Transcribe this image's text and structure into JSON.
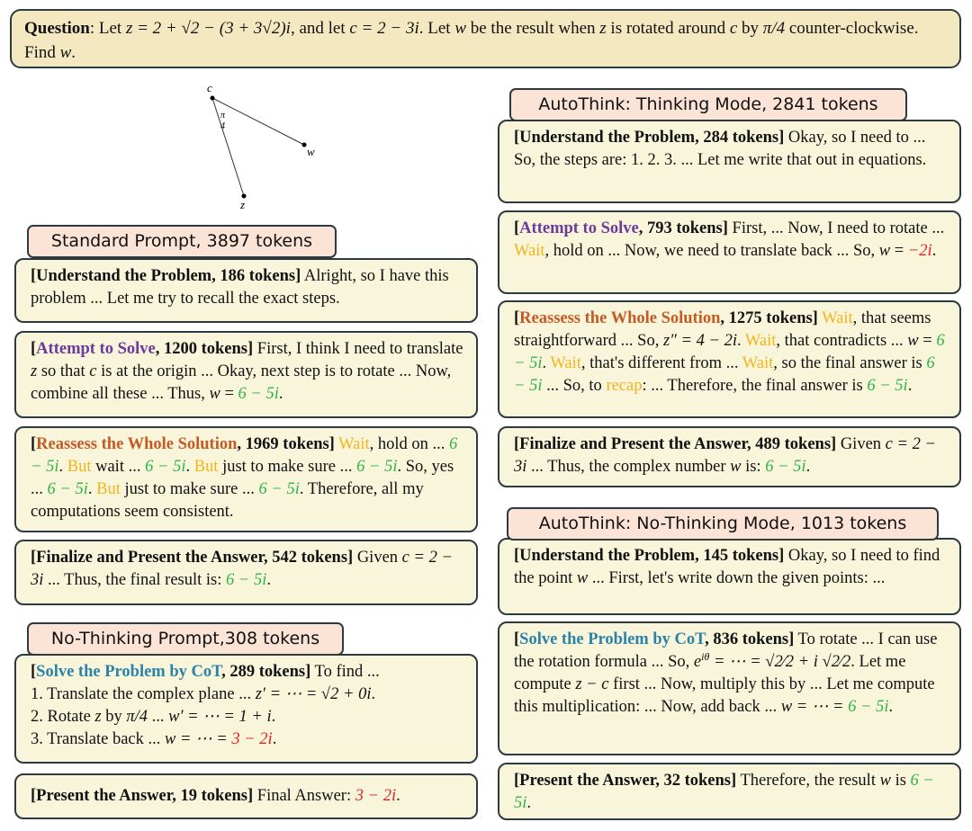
{
  "question": {
    "segments": [
      {
        "t": "Question",
        "s": "b"
      },
      {
        "t": ": Let ",
        "s": ""
      },
      {
        "t": "z = 2 + √2 − (3 + 3√2)i",
        "s": "i"
      },
      {
        "t": ", and let ",
        "s": ""
      },
      {
        "t": "c = 2 − 3i",
        "s": "i"
      },
      {
        "t": ".  Let ",
        "s": ""
      },
      {
        "t": "w",
        "s": "i"
      },
      {
        "t": " be the result when ",
        "s": ""
      },
      {
        "t": "z",
        "s": "i"
      },
      {
        "t": " is rotated around ",
        "s": ""
      },
      {
        "t": "c",
        "s": "i"
      },
      {
        "t": " by ",
        "s": ""
      },
      {
        "t": "π/4",
        "s": "i"
      },
      {
        "t": " counter-clockwise. Find ",
        "s": ""
      },
      {
        "t": "w",
        "s": "i"
      },
      {
        "t": ".",
        "s": ""
      }
    ]
  },
  "diagram": {
    "label_c": "c",
    "label_angle_num": "π",
    "label_angle_den": "4",
    "label_w": "w",
    "label_z": "z"
  },
  "colors": {
    "attempt": "#6b3a9c",
    "reassess": "#c55a24",
    "cot": "#2a82a8",
    "hesitation": "#f2b51c",
    "correct": "#2fb34a",
    "wrong": "#e02222",
    "box_bg": "#f8f5da",
    "header_bg": "#fbe3d6",
    "question_bg": "#f3e8bf"
  },
  "headers": {
    "standard": "Standard Prompt, 3897 tokens",
    "nothinking": "No-Thinking Prompt,308 tokens",
    "autothink_thinking": "AutoThink: Thinking Mode, 2841 tokens",
    "autothink_nothinking": "AutoThink: No-Thinking Mode, 1013 tokens"
  },
  "boxes": [
    {
      "segments": [
        {
          "t": "[Understand the Problem, 186 tokens]",
          "s": "b"
        },
        {
          "t": " Alright, so I have this problem ... Let me try to recall the exact steps.",
          "s": ""
        }
      ]
    },
    {
      "segments": [
        {
          "t": "[",
          "s": "b"
        },
        {
          "t": "Attempt to Solve",
          "s": "bp"
        },
        {
          "t": ", 1200 tokens]",
          "s": "b"
        },
        {
          "t": " First, I think I need to translate ",
          "s": ""
        },
        {
          "t": "z",
          "s": "i"
        },
        {
          "t": " so that ",
          "s": ""
        },
        {
          "t": "c",
          "s": "i"
        },
        {
          "t": " is at the origin ... Okay, next step is to rotate ... Now, combine all these ... Thus, ",
          "s": ""
        },
        {
          "t": "w",
          "s": "i"
        },
        {
          "t": " = ",
          "s": ""
        },
        {
          "t": "6 − 5i",
          "s": "g"
        },
        {
          "t": ".",
          "s": ""
        }
      ]
    },
    {
      "segments": [
        {
          "t": "[",
          "s": "b"
        },
        {
          "t": "Reassess the Whole Solution",
          "s": "bo"
        },
        {
          "t": ", 1969 tokens]",
          "s": "b"
        },
        {
          "t": " ",
          "s": ""
        },
        {
          "t": "Wait",
          "s": "y"
        },
        {
          "t": ", hold on ... ",
          "s": ""
        },
        {
          "t": "6 − 5i",
          "s": "g"
        },
        {
          "t": ". ",
          "s": ""
        },
        {
          "t": "But",
          "s": "y"
        },
        {
          "t": " wait ... ",
          "s": ""
        },
        {
          "t": "6 − 5i",
          "s": "g"
        },
        {
          "t": ". ",
          "s": ""
        },
        {
          "t": "But",
          "s": "y"
        },
        {
          "t": " just to make sure ... ",
          "s": ""
        },
        {
          "t": "6 − 5i",
          "s": "g"
        },
        {
          "t": ". So, yes ... ",
          "s": ""
        },
        {
          "t": "6 − 5i",
          "s": "g"
        },
        {
          "t": ". ",
          "s": ""
        },
        {
          "t": "But",
          "s": "y"
        },
        {
          "t": " just to make sure ... ",
          "s": ""
        },
        {
          "t": "6 − 5i",
          "s": "g"
        },
        {
          "t": ". Therefore, all my computations seem consistent.",
          "s": ""
        }
      ]
    },
    {
      "segments": [
        {
          "t": "[Finalize and Present the Answer, 542 tokens]",
          "s": "b"
        },
        {
          "t": " Given ",
          "s": ""
        },
        {
          "t": "c = 2 − 3i",
          "s": "i"
        },
        {
          "t": " ... Thus, the final result is: ",
          "s": ""
        },
        {
          "t": "6 − 5i",
          "s": "g"
        },
        {
          "t": ".",
          "s": ""
        }
      ]
    },
    {
      "segments": [
        {
          "t": "[",
          "s": "b"
        },
        {
          "t": "Solve the Problem by CoT",
          "s": "bc"
        },
        {
          "t": ", 289 tokens]",
          "s": "b"
        },
        {
          "t": " To find ...",
          "s": ""
        },
        {
          "t": "",
          "s": "br"
        },
        {
          "t": "1. Translate the complex plane ... ",
          "s": ""
        },
        {
          "t": "z′ = ⋯ = √2 + 0i",
          "s": "i"
        },
        {
          "t": ".",
          "s": ""
        },
        {
          "t": "",
          "s": "br"
        },
        {
          "t": "2. Rotate ",
          "s": ""
        },
        {
          "t": "z",
          "s": "i"
        },
        {
          "t": " by ",
          "s": ""
        },
        {
          "t": "π/4",
          "s": "i"
        },
        {
          "t": " ... ",
          "s": ""
        },
        {
          "t": "w′ = ⋯ = 1 + i",
          "s": "i"
        },
        {
          "t": ".",
          "s": ""
        },
        {
          "t": "",
          "s": "br"
        },
        {
          "t": "3. Translate back ... ",
          "s": ""
        },
        {
          "t": "w = ⋯ = ",
          "s": "i"
        },
        {
          "t": "3 − 2i",
          "s": "r"
        },
        {
          "t": ".",
          "s": ""
        }
      ]
    },
    {
      "segments": [
        {
          "t": "[Present the Answer, 19 tokens]",
          "s": "b"
        },
        {
          "t": " Final Answer: ",
          "s": ""
        },
        {
          "t": "3 − 2i",
          "s": "r"
        },
        {
          "t": ".",
          "s": ""
        }
      ]
    },
    {
      "segments": [
        {
          "t": "[Understand the Problem, 284 tokens]",
          "s": "b"
        },
        {
          "t": " Okay, so I need to ... So, the steps are: 1. 2. 3. ... Let me write that out in equations.",
          "s": ""
        }
      ]
    },
    {
      "segments": [
        {
          "t": "[",
          "s": "b"
        },
        {
          "t": "Attempt to Solve",
          "s": "bp"
        },
        {
          "t": ", 793 tokens]",
          "s": "b"
        },
        {
          "t": " First, ... Now, I need to rotate ... ",
          "s": ""
        },
        {
          "t": "Wait",
          "s": "y"
        },
        {
          "t": ", hold on ... Now, we need to translate back ... So, ",
          "s": ""
        },
        {
          "t": "w",
          "s": "i"
        },
        {
          "t": " = ",
          "s": ""
        },
        {
          "t": "−2i",
          "s": "r"
        },
        {
          "t": ".",
          "s": ""
        }
      ]
    },
    {
      "segments": [
        {
          "t": "[",
          "s": "b"
        },
        {
          "t": "Reassess the Whole Solution",
          "s": "bo"
        },
        {
          "t": ", 1275 tokens]",
          "s": "b"
        },
        {
          "t": " ",
          "s": ""
        },
        {
          "t": "Wait",
          "s": "y"
        },
        {
          "t": ", that seems straightforward ... So, ",
          "s": ""
        },
        {
          "t": "z″ = 4 − 2i",
          "s": "i"
        },
        {
          "t": ". ",
          "s": ""
        },
        {
          "t": "Wait",
          "s": "y"
        },
        {
          "t": ", that contradicts ... ",
          "s": ""
        },
        {
          "t": "w",
          "s": "i"
        },
        {
          "t": " = ",
          "s": ""
        },
        {
          "t": "6 − 5i",
          "s": "g"
        },
        {
          "t": ". ",
          "s": ""
        },
        {
          "t": "Wait",
          "s": "y"
        },
        {
          "t": ", that's different from ... ",
          "s": ""
        },
        {
          "t": "Wait",
          "s": "y"
        },
        {
          "t": ", so the final answer is ",
          "s": ""
        },
        {
          "t": "6 − 5i",
          "s": "g"
        },
        {
          "t": " ... So, to ",
          "s": ""
        },
        {
          "t": "recap",
          "s": "y"
        },
        {
          "t": ": ... Therefore, the final answer is ",
          "s": ""
        },
        {
          "t": "6 − 5i",
          "s": "g"
        },
        {
          "t": ".",
          "s": ""
        }
      ]
    },
    {
      "segments": [
        {
          "t": "[Finalize and Present the Answer, 489 tokens]",
          "s": "b"
        },
        {
          "t": " Given ",
          "s": ""
        },
        {
          "t": "c = 2 − 3i",
          "s": "i"
        },
        {
          "t": " ... Thus, the complex number ",
          "s": ""
        },
        {
          "t": "w",
          "s": "i"
        },
        {
          "t": " is: ",
          "s": ""
        },
        {
          "t": "6 − 5i",
          "s": "g"
        },
        {
          "t": ".",
          "s": ""
        }
      ]
    },
    {
      "segments": [
        {
          "t": "[Understand the Problem, 145 tokens]",
          "s": "b"
        },
        {
          "t": " Okay, so I need to find the point ",
          "s": ""
        },
        {
          "t": "w",
          "s": "i"
        },
        {
          "t": " ... First, let's write down the given points: ...",
          "s": ""
        }
      ]
    },
    {
      "segments": [
        {
          "t": "[",
          "s": "b"
        },
        {
          "t": "Solve the Problem by CoT",
          "s": "bc"
        },
        {
          "t": ", 836 tokens]",
          "s": "b"
        },
        {
          "t": " To rotate ... I can use the rotation formula ... So, ",
          "s": ""
        },
        {
          "t": "e",
          "s": "i"
        },
        {
          "t": "iθ",
          "s": "sup"
        },
        {
          "t": " = ⋯ = √2⁄2 + i √2⁄2",
          "s": "i"
        },
        {
          "t": ". Let me compute ",
          "s": ""
        },
        {
          "t": "z − c",
          "s": "i"
        },
        {
          "t": " first ... Now, multiply this by ... Let me compute this multiplication: ... Now, add back ... ",
          "s": ""
        },
        {
          "t": "w = ⋯ = ",
          "s": "i"
        },
        {
          "t": "6 − 5i",
          "s": "g"
        },
        {
          "t": ".",
          "s": ""
        }
      ]
    },
    {
      "segments": [
        {
          "t": "[Present the Answer, 32 tokens]",
          "s": "b"
        },
        {
          "t": " Therefore, the result ",
          "s": ""
        },
        {
          "t": "w",
          "s": "i"
        },
        {
          "t": " is ",
          "s": ""
        },
        {
          "t": "6 − 5i",
          "s": "g"
        },
        {
          "t": ".",
          "s": ""
        }
      ]
    }
  ]
}
